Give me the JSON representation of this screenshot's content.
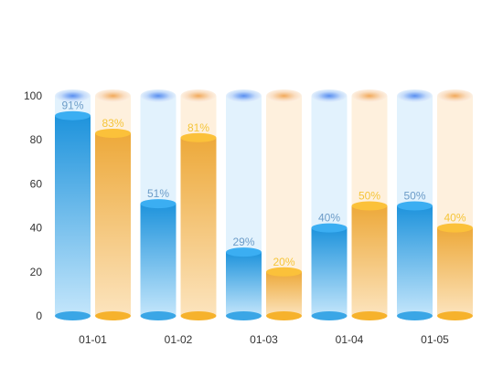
{
  "chart_data": {
    "type": "bar",
    "categories": [
      "01-01",
      "01-02",
      "01-03",
      "01-04",
      "01-05"
    ],
    "series": [
      {
        "values": [
          91,
          51,
          29,
          40,
          50
        ],
        "color": "#3AA6E6",
        "label_color": "#6C9CC8"
      },
      {
        "values": [
          83,
          81,
          20,
          50,
          40
        ],
        "color": "#F1B23E",
        "label_color": "#F5C53A"
      }
    ],
    "value_suffix": "%",
    "ylim": [
      0,
      100
    ],
    "yticks": [
      0,
      20,
      40,
      60,
      80,
      100
    ],
    "grid": false,
    "legend": "none"
  }
}
